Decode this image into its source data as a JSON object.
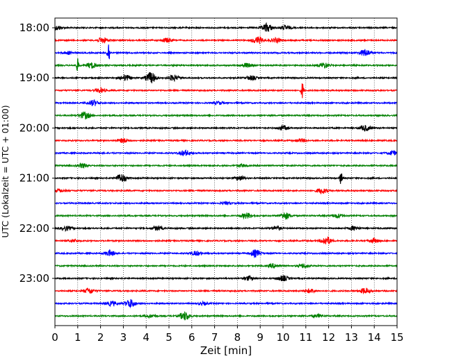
{
  "chart_data": {
    "type": "line",
    "title": "",
    "xlabel": "Zeit  [min]",
    "ylabel": "UTC (Lokalzeit = UTC + 01:00)",
    "xlim": [
      0,
      15
    ],
    "x_ticks": [
      0,
      1,
      2,
      3,
      4,
      5,
      6,
      7,
      8,
      9,
      10,
      11,
      12,
      13,
      14,
      15
    ],
    "x_tick_labels": [
      "0",
      "1",
      "2",
      "3",
      "4",
      "5",
      "6",
      "7",
      "8",
      "9",
      "10",
      "11",
      "12",
      "13",
      "14",
      "15"
    ],
    "y_tick_labels": [
      "18:00",
      "19:00",
      "20:00",
      "21:00",
      "22:00",
      "23:00"
    ],
    "x_grid": "dotted vertical lines at each minute",
    "legend": "none",
    "colors_cycle": [
      "#000000",
      "#ff0000",
      "#0000ff",
      "#008000"
    ],
    "series": [
      {
        "start": "18:00",
        "color": "#000000",
        "bursts": [
          {
            "t": 0.1,
            "a": 3
          },
          {
            "t": 9.3,
            "a": 6
          },
          {
            "t": 10.1,
            "a": 3
          }
        ]
      },
      {
        "start": "18:15",
        "color": "#ff0000",
        "bursts": [
          {
            "t": 2.1,
            "a": 4
          },
          {
            "t": 4.9,
            "a": 3
          },
          {
            "t": 8.9,
            "a": 5
          },
          {
            "t": 9.7,
            "a": 3
          }
        ]
      },
      {
        "start": "18:30",
        "color": "#0000ff",
        "bursts": [
          {
            "t": 2.35,
            "a": 16
          },
          {
            "t": 13.6,
            "a": 5
          },
          {
            "t": 0.6,
            "a": 2
          }
        ]
      },
      {
        "start": "18:45",
        "color": "#008000",
        "bursts": [
          {
            "t": 1.0,
            "a": 9
          },
          {
            "t": 1.6,
            "a": 4
          },
          {
            "t": 11.8,
            "a": 4
          },
          {
            "t": 8.4,
            "a": 3
          }
        ]
      },
      {
        "start": "19:00",
        "color": "#000000",
        "bursts": [
          {
            "t": 4.2,
            "a": 8
          },
          {
            "t": 3.1,
            "a": 4
          },
          {
            "t": 5.2,
            "a": 4
          },
          {
            "t": 8.6,
            "a": 3
          }
        ]
      },
      {
        "start": "19:15",
        "color": "#ff0000",
        "bursts": [
          {
            "t": 10.85,
            "a": 11
          },
          {
            "t": 2.0,
            "a": 3
          }
        ]
      },
      {
        "start": "19:30",
        "color": "#0000ff",
        "bursts": [
          {
            "t": 1.7,
            "a": 4
          },
          {
            "t": 7.2,
            "a": 2
          }
        ]
      },
      {
        "start": "19:45",
        "color": "#008000",
        "bursts": [
          {
            "t": 1.3,
            "a": 5
          }
        ]
      },
      {
        "start": "20:00",
        "color": "#000000",
        "bursts": [
          {
            "t": 13.6,
            "a": 4
          },
          {
            "t": 10.0,
            "a": 3
          }
        ]
      },
      {
        "start": "20:15",
        "color": "#ff0000",
        "bursts": [
          {
            "t": 3.0,
            "a": 3
          },
          {
            "t": 10.8,
            "a": 2
          }
        ]
      },
      {
        "start": "20:30",
        "color": "#0000ff",
        "bursts": [
          {
            "t": 5.7,
            "a": 4
          },
          {
            "t": 14.8,
            "a": 3
          }
        ]
      },
      {
        "start": "20:45",
        "color": "#008000",
        "bursts": [
          {
            "t": 1.2,
            "a": 3
          },
          {
            "t": 8.2,
            "a": 2
          }
        ]
      },
      {
        "start": "21:00",
        "color": "#000000",
        "bursts": [
          {
            "t": 2.9,
            "a": 6
          },
          {
            "t": 12.55,
            "a": 10
          },
          {
            "t": 8.1,
            "a": 3
          }
        ]
      },
      {
        "start": "21:15",
        "color": "#ff0000",
        "bursts": [
          {
            "t": 11.7,
            "a": 4
          },
          {
            "t": 0.2,
            "a": 2
          }
        ]
      },
      {
        "start": "21:30",
        "color": "#0000ff",
        "bursts": [
          {
            "t": 7.5,
            "a": 1.5
          }
        ]
      },
      {
        "start": "21:45",
        "color": "#008000",
        "bursts": [
          {
            "t": 10.1,
            "a": 5
          },
          {
            "t": 8.4,
            "a": 4
          },
          {
            "t": 12.4,
            "a": 3
          }
        ]
      },
      {
        "start": "22:00",
        "color": "#000000",
        "bursts": [
          {
            "t": 0.5,
            "a": 3
          },
          {
            "t": 4.5,
            "a": 3
          },
          {
            "t": 9.7,
            "a": 3
          },
          {
            "t": 13.1,
            "a": 3
          }
        ]
      },
      {
        "start": "22:15",
        "color": "#ff0000",
        "bursts": [
          {
            "t": 11.9,
            "a": 6
          },
          {
            "t": 14.0,
            "a": 3
          },
          {
            "t": 0.8,
            "a": 2
          }
        ]
      },
      {
        "start": "22:30",
        "color": "#0000ff",
        "bursts": [
          {
            "t": 2.4,
            "a": 4
          },
          {
            "t": 8.8,
            "a": 5
          },
          {
            "t": 6.2,
            "a": 3
          }
        ]
      },
      {
        "start": "22:45",
        "color": "#008000",
        "bursts": [
          {
            "t": 9.6,
            "a": 3
          },
          {
            "t": 10.9,
            "a": 3
          }
        ]
      },
      {
        "start": "23:00",
        "color": "#000000",
        "bursts": [
          {
            "t": 10.0,
            "a": 4
          },
          {
            "t": 8.5,
            "a": 3
          }
        ]
      },
      {
        "start": "23:15",
        "color": "#ff0000",
        "bursts": [
          {
            "t": 1.5,
            "a": 4
          },
          {
            "t": 13.6,
            "a": 4
          },
          {
            "t": 11.2,
            "a": 3
          }
        ]
      },
      {
        "start": "23:30",
        "color": "#0000ff",
        "bursts": [
          {
            "t": 3.3,
            "a": 6
          },
          {
            "t": 2.5,
            "a": 3
          },
          {
            "t": 6.5,
            "a": 2
          }
        ]
      },
      {
        "start": "23:45",
        "color": "#008000",
        "bursts": [
          {
            "t": 5.7,
            "a": 6
          },
          {
            "t": 4.2,
            "a": 2
          },
          {
            "t": 11.5,
            "a": 2
          }
        ]
      }
    ]
  }
}
